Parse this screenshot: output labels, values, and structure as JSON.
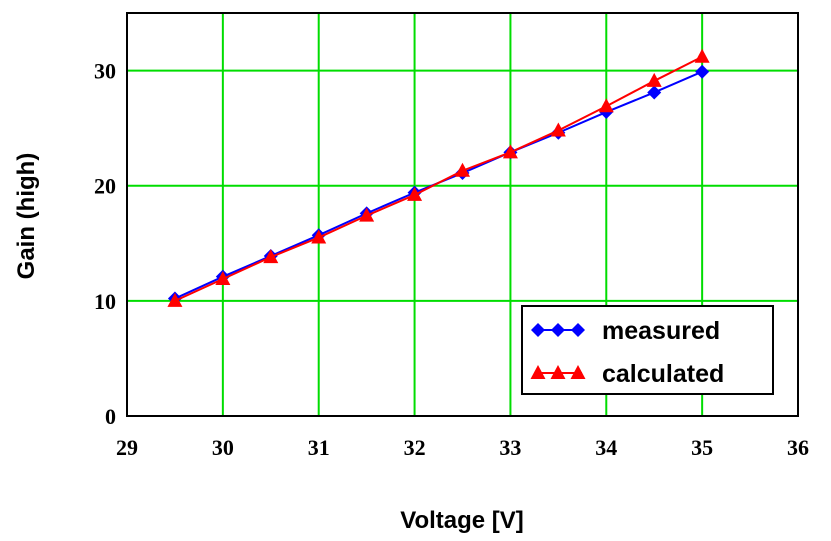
{
  "chart_data": {
    "type": "line",
    "title": "",
    "xlabel": "Voltage [V]",
    "ylabel": "Gain (high)",
    "xlim": [
      29,
      36
    ],
    "ylim": [
      0,
      35
    ],
    "xticks": [
      29,
      30,
      31,
      32,
      33,
      34,
      35,
      36
    ],
    "yticks": [
      0,
      10,
      20,
      30
    ],
    "x_tick_labels": [
      "29",
      "30",
      "31",
      "32",
      "33",
      "34",
      "35",
      "36"
    ],
    "y_tick_labels": [
      "0",
      "10",
      "20",
      "30"
    ],
    "grid": true,
    "legend_position": "bottom-right",
    "series": [
      {
        "name": "measured",
        "marker": "diamond",
        "color": "#0000ff",
        "x": [
          29.5,
          30.0,
          30.5,
          31.0,
          31.5,
          32.0,
          32.5,
          33.0,
          33.5,
          34.0,
          34.5,
          35.0
        ],
        "y": [
          10.2,
          12.1,
          13.9,
          15.7,
          17.6,
          19.4,
          21.1,
          22.9,
          24.6,
          26.4,
          28.1,
          29.9
        ]
      },
      {
        "name": "calculated",
        "marker": "triangle",
        "color": "#ff0000",
        "x": [
          29.5,
          30.0,
          30.5,
          31.0,
          31.5,
          32.0,
          32.5,
          33.0,
          33.5,
          34.0,
          34.5,
          35.0
        ],
        "y": [
          10.0,
          11.9,
          13.8,
          15.5,
          17.4,
          19.2,
          21.3,
          22.9,
          24.8,
          26.9,
          29.1,
          31.2
        ]
      }
    ]
  },
  "colors": {
    "grid": "#00dd00",
    "axis": "#000000",
    "background": "#ffffff"
  }
}
